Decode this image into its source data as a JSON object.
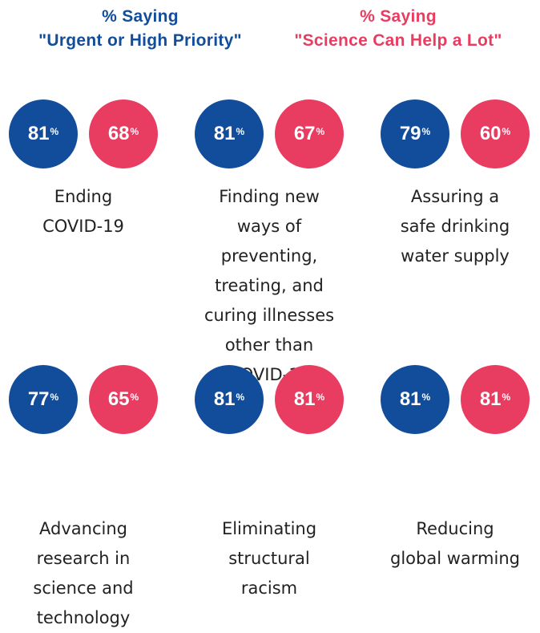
{
  "header": {
    "urgent": [
      "% Saying",
      "\"Urgent or High Priority\""
    ],
    "science": [
      "% Saying",
      "\"Science Can Help a Lot\""
    ]
  },
  "unit": "%",
  "items": [
    {
      "label": [
        "Ending",
        "COVID-19"
      ],
      "urgent": 81,
      "science": 68
    },
    {
      "label": [
        "Finding new",
        "ways of",
        "preventing,",
        "treating, and",
        "curing illnesses",
        "other than",
        "COVID-19"
      ],
      "urgent": 81,
      "science": 67
    },
    {
      "label": [
        "Assuring a",
        "safe drinking",
        "water supply"
      ],
      "urgent": 79,
      "science": 60
    },
    {
      "label": [
        "Advancing",
        "research in",
        "science and",
        "technology"
      ],
      "urgent": 77,
      "science": 65
    },
    {
      "label": [
        "Eliminating",
        "structural",
        "racism"
      ],
      "urgent": 81,
      "science": 81
    },
    {
      "label": [
        "Reducing",
        "global warming"
      ],
      "urgent": 81,
      "science": 81
    }
  ]
}
